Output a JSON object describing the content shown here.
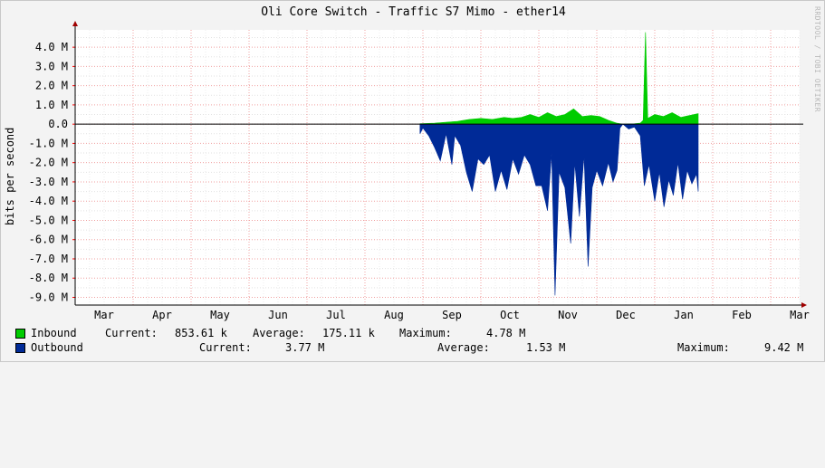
{
  "title": "Oli Core Switch - Traffic S7 Mimo - ether14",
  "watermark": "RRDTOOL / TOBI OETIKER",
  "chart_data": {
    "type": "area",
    "ylabel": "bits per second",
    "ylim": [
      -9.4,
      4.9
    ],
    "y_ticks": [
      "4.0 M",
      "3.0 M",
      "2.0 M",
      "1.0 M",
      "0.0",
      "-1.0 M",
      "-2.0 M",
      "-3.0 M",
      "-4.0 M",
      "-5.0 M",
      "-6.0 M",
      "-7.0 M",
      "-8.0 M",
      "-9.0 M"
    ],
    "y_tick_values": [
      4,
      3,
      2,
      1,
      0,
      -1,
      -2,
      -3,
      -4,
      -5,
      -6,
      -7,
      -8,
      -9
    ],
    "x_ticks": [
      "Mar",
      "Apr",
      "May",
      "Jun",
      "Jul",
      "Aug",
      "Sep",
      "Oct",
      "Nov",
      "Dec",
      "Jan",
      "Feb",
      "Mar"
    ],
    "x_range_months": [
      0,
      12.5
    ],
    "grid": true,
    "series": [
      {
        "name": "Inbound",
        "color": "#00cc00",
        "points": [
          [
            5.95,
            0.02
          ],
          [
            6.2,
            0.05
          ],
          [
            6.4,
            0.1
          ],
          [
            6.6,
            0.15
          ],
          [
            6.8,
            0.25
          ],
          [
            7.0,
            0.3
          ],
          [
            7.2,
            0.25
          ],
          [
            7.4,
            0.35
          ],
          [
            7.55,
            0.3
          ],
          [
            7.7,
            0.35
          ],
          [
            7.85,
            0.5
          ],
          [
            8.0,
            0.35
          ],
          [
            8.15,
            0.6
          ],
          [
            8.3,
            0.4
          ],
          [
            8.45,
            0.5
          ],
          [
            8.6,
            0.8
          ],
          [
            8.75,
            0.4
          ],
          [
            8.9,
            0.45
          ],
          [
            9.05,
            0.4
          ],
          [
            9.2,
            0.2
          ],
          [
            9.35,
            0.05
          ],
          [
            9.45,
            0.0
          ],
          [
            9.65,
            0.02
          ],
          [
            9.75,
            0.05
          ],
          [
            9.8,
            0.2
          ],
          [
            9.84,
            4.78
          ],
          [
            9.88,
            0.3
          ],
          [
            10.0,
            0.5
          ],
          [
            10.15,
            0.4
          ],
          [
            10.3,
            0.6
          ],
          [
            10.45,
            0.35
          ],
          [
            10.6,
            0.45
          ],
          [
            10.75,
            0.55
          ]
        ]
      },
      {
        "name": "Outbound",
        "color": "#002a97",
        "points": [
          [
            5.95,
            -0.5
          ],
          [
            6.0,
            -0.2
          ],
          [
            6.1,
            -0.6
          ],
          [
            6.2,
            -1.2
          ],
          [
            6.3,
            -1.9
          ],
          [
            6.4,
            -0.5
          ],
          [
            6.5,
            -2.1
          ],
          [
            6.55,
            -0.6
          ],
          [
            6.65,
            -1.1
          ],
          [
            6.75,
            -2.5
          ],
          [
            6.85,
            -3.5
          ],
          [
            6.95,
            -1.8
          ],
          [
            7.05,
            -2.1
          ],
          [
            7.15,
            -1.6
          ],
          [
            7.25,
            -3.5
          ],
          [
            7.35,
            -2.4
          ],
          [
            7.45,
            -3.4
          ],
          [
            7.55,
            -1.8
          ],
          [
            7.65,
            -2.6
          ],
          [
            7.75,
            -1.6
          ],
          [
            7.85,
            -2.1
          ],
          [
            7.95,
            -3.2
          ],
          [
            8.05,
            -3.2
          ],
          [
            8.15,
            -4.5
          ],
          [
            8.22,
            -1.5
          ],
          [
            8.28,
            -8.9
          ],
          [
            8.35,
            -2.5
          ],
          [
            8.45,
            -3.3
          ],
          [
            8.55,
            -6.2
          ],
          [
            8.62,
            -2.0
          ],
          [
            8.7,
            -4.8
          ],
          [
            8.78,
            -1.6
          ],
          [
            8.85,
            -7.4
          ],
          [
            8.92,
            -3.3
          ],
          [
            9.0,
            -2.4
          ],
          [
            9.1,
            -3.2
          ],
          [
            9.2,
            -2.0
          ],
          [
            9.28,
            -3.0
          ],
          [
            9.35,
            -2.4
          ],
          [
            9.4,
            -0.2
          ],
          [
            9.45,
            0.0
          ],
          [
            9.55,
            -0.25
          ],
          [
            9.65,
            -0.15
          ],
          [
            9.75,
            -0.6
          ],
          [
            9.82,
            -3.2
          ],
          [
            9.9,
            -2.1
          ],
          [
            10.0,
            -4.0
          ],
          [
            10.08,
            -2.5
          ],
          [
            10.16,
            -4.3
          ],
          [
            10.24,
            -2.9
          ],
          [
            10.32,
            -3.7
          ],
          [
            10.4,
            -2.0
          ],
          [
            10.48,
            -3.9
          ],
          [
            10.56,
            -2.4
          ],
          [
            10.64,
            -3.1
          ],
          [
            10.72,
            -2.6
          ],
          [
            10.75,
            -3.5
          ]
        ]
      }
    ]
  },
  "legend": [
    {
      "name": "Inbound",
      "color": "#00cc00",
      "current_label": "Current:",
      "current": "853.61 k",
      "average_label": "Average:",
      "average": "175.11 k",
      "maximum_label": "Maximum:",
      "maximum": "4.78 M"
    },
    {
      "name": "Outbound",
      "color": "#002a97",
      "current_label": "Current:",
      "current": "3.77 M",
      "average_label": "Average:",
      "average": "1.53 M",
      "maximum_label": "Maximum:",
      "maximum": "9.42 M"
    }
  ]
}
